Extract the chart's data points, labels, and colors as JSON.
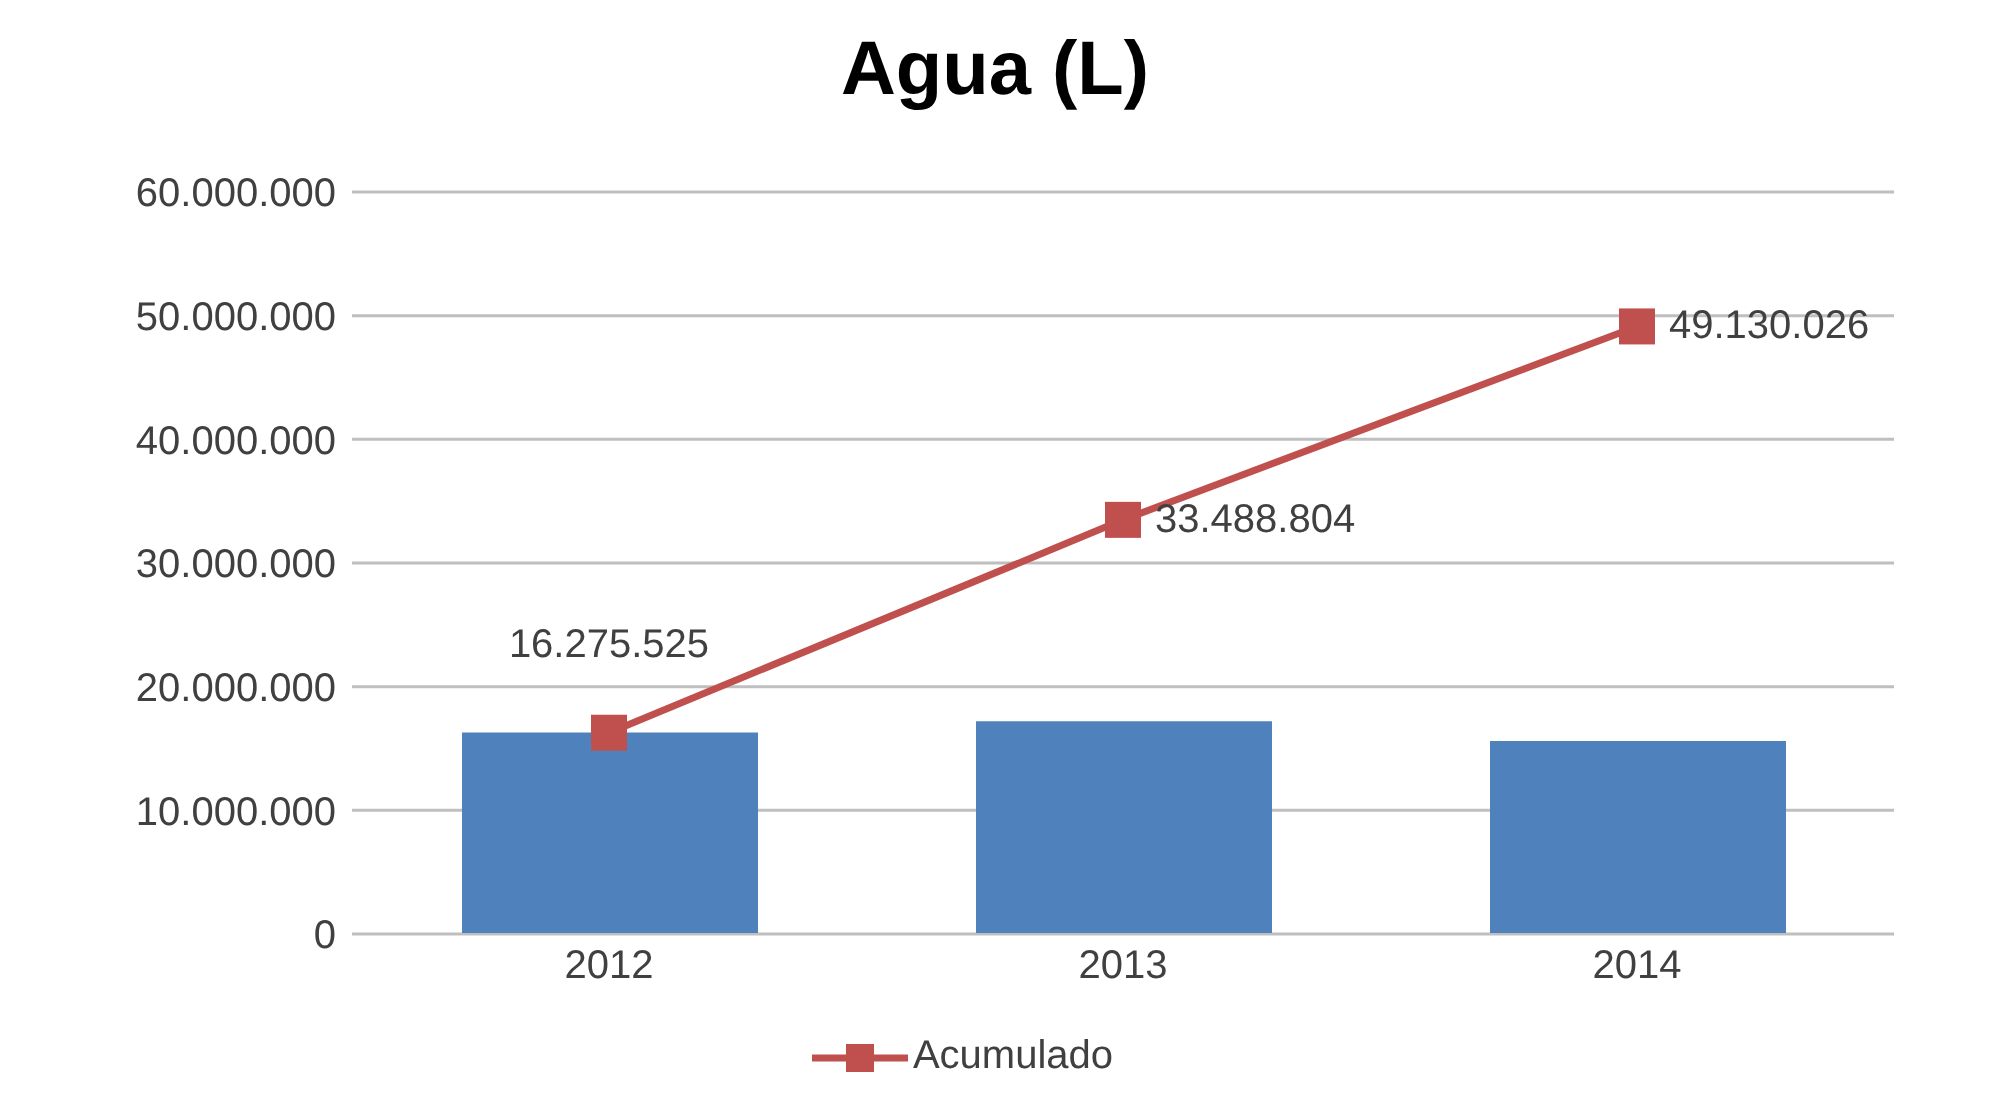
{
  "chart_data": {
    "type": "bar",
    "title": "Agua (L)",
    "categories": [
      "2012",
      "2013",
      "2014"
    ],
    "series": [
      {
        "color": "#4f81bd",
        "values": [
          16300000,
          17200000,
          15600000
        ]
      },
      {
        "type": "line",
        "name": "Acumulado",
        "color": "#c0504d",
        "values": [
          16275525,
          33488804,
          49130026
        ],
        "value_labels": [
          "16.275.525",
          "33.488.804",
          "49.130.026"
        ],
        "marker": "square"
      }
    ],
    "ylim": [
      0,
      60000000
    ],
    "yticks": [
      0,
      {
        "value": 10000000,
        "label": "10.000.000"
      },
      {
        "value": 20000000,
        "label": "20.000.000"
      },
      {
        "value": 30000000,
        "label": "30.000.000"
      },
      {
        "value": 40000000,
        "label": "40.000.000"
      },
      {
        "value": 50000000,
        "label": "50.000.000"
      },
      {
        "value": 60000000,
        "label": "60.000.000"
      }
    ],
    "grid": "y",
    "legend": "bottom"
  }
}
